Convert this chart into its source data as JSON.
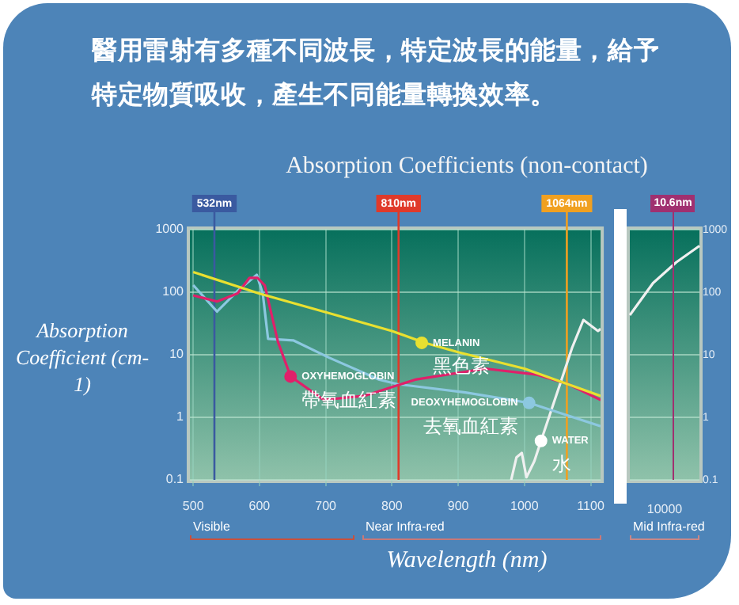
{
  "chart_data": [
    {
      "type": "line",
      "title": "醫用雷射有多種不同波長，特定波長的能量，給予特定物質吸收，產生不同能量轉換效率。",
      "subtitle": "Absorption Coefficients (non-contact)",
      "xlabel": "Wavelength (nm)",
      "ylabel": "Absorption Coefficient (cm-1)",
      "log": true,
      "grid": true,
      "xlim": [
        495,
        1115
      ],
      "xticks": [
        500,
        600,
        700,
        800,
        900,
        1000,
        1100
      ],
      "ylim": [
        0.1,
        1000
      ],
      "yticks": [
        0.1,
        1,
        10,
        100,
        1000
      ],
      "series": [
        {
          "color": "#e8e030",
          "x": [
            500,
            600,
            700,
            800,
            850,
            900,
            1000,
            1100,
            1115
          ],
          "values": [
            210,
            95,
            48,
            24,
            15.5,
            11,
            6,
            2.5,
            2.2
          ]
        },
        {
          "color": "#e0206a",
          "x": [
            500,
            536,
            567,
            585,
            597,
            608,
            628,
            647,
            697,
            758,
            835,
            941,
            1019,
            1066,
            1115
          ],
          "values": [
            89,
            71,
            96,
            170,
            170,
            129,
            16,
            4.5,
            1.9,
            2.2,
            4,
            6,
            4.8,
            3.4,
            1.9
          ]
        },
        {
          "color": "#8cc8e0",
          "x": [
            500,
            536,
            567,
            596,
            605,
            613,
            651,
            705,
            781,
            808,
            911,
            1007,
            1115
          ],
          "values": [
            130,
            49,
            105,
            190,
            95,
            18,
            17,
            9,
            4,
            3.4,
            2.5,
            1.7,
            0.72
          ]
        },
        {
          "color": "#f0f0f0",
          "x": [
            980,
            988,
            996,
            1003,
            1015,
            1025,
            1056,
            1072,
            1089,
            1111,
            1115
          ],
          "values": [
            0.1,
            0.23,
            0.27,
            0.11,
            0.2,
            0.42,
            4,
            13,
            36,
            24,
            26
          ]
        },
        {
          "type": "scatter",
          "marker": "circle",
          "x": [
            647,
            845,
            1007,
            1025
          ],
          "values": [
            4.5,
            15.5,
            1.7,
            0.42
          ],
          "colors": [
            "#e0206a",
            "#e8e030",
            "#8cc8e0",
            "#ffffff"
          ]
        }
      ],
      "ref_lines": [
        {
          "axis": "x",
          "value": 532,
          "label": "532nm",
          "color": "#3a5aa0"
        },
        {
          "axis": "x",
          "value": 810,
          "label": "810nm",
          "color": "#e03a2a"
        },
        {
          "axis": "x",
          "value": 1064,
          "label": "1064nm",
          "color": "#f0a020"
        }
      ],
      "annotations": [
        "Visible",
        "Near Infra-red",
        {
          "text": "MELANIN",
          "x": 845,
          "y": 15.5
        },
        {
          "text": "黑色素",
          "x": 845,
          "y": 15.5
        },
        {
          "text": "OXYHEMOGLOBIN",
          "x": 647,
          "y": 4.5
        },
        {
          "text": "帶氧血紅素",
          "x": 647,
          "y": 4.5
        },
        {
          "text": "DEOXYHEMOGLOBIN",
          "x": 1007,
          "y": 1.7
        },
        {
          "text": "去氧血紅素",
          "x": 1007,
          "y": 1.7
        },
        {
          "text": "WATER",
          "x": 1025,
          "y": 0.42
        },
        {
          "text": "水",
          "x": 1025,
          "y": 0.42
        }
      ]
    },
    {
      "type": "line",
      "log": true,
      "grid": "y",
      "categories": [
        null,
        null,
        null,
        null
      ],
      "ylim": [
        0.1,
        1000
      ],
      "yticks": [
        0.1,
        1,
        10,
        100,
        1000
      ],
      "series": [
        {
          "color": "#f0f0f0",
          "values": [
            43,
            140,
            300,
            550
          ]
        }
      ],
      "annotations": [
        "10.6nm",
        "10000",
        "Mid Infra-red"
      ]
    }
  ]
}
